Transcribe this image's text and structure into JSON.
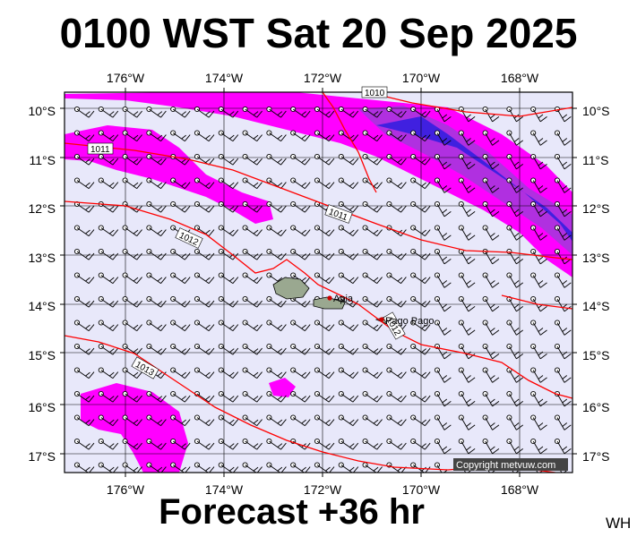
{
  "header": {
    "title": "0100 WST Sat 20 Sep 2025"
  },
  "footer": {
    "forecast": "Forecast +36 hr",
    "code": "WH"
  },
  "map": {
    "lon_labels": [
      "176°W",
      "174°W",
      "172°W",
      "170°W",
      "168°W"
    ],
    "lat_labels": [
      "10°S",
      "11°S",
      "12°S",
      "13°S",
      "14°S",
      "15°S",
      "16°S",
      "17°S"
    ],
    "isobar_labels": [
      "1010",
      "1011",
      "1011",
      "1012",
      "1012",
      "1013"
    ],
    "places": [
      "Apia",
      "Pago Pago"
    ],
    "copyright": "Copyright metvuw.com",
    "colors": {
      "ocean": "#e8e8fa",
      "rain_light": "#ff00ff",
      "rain_mid": "#b030e0",
      "rain_heavy": "#4020e0",
      "isobar": "#ff0000",
      "land": "#9aa890"
    }
  }
}
